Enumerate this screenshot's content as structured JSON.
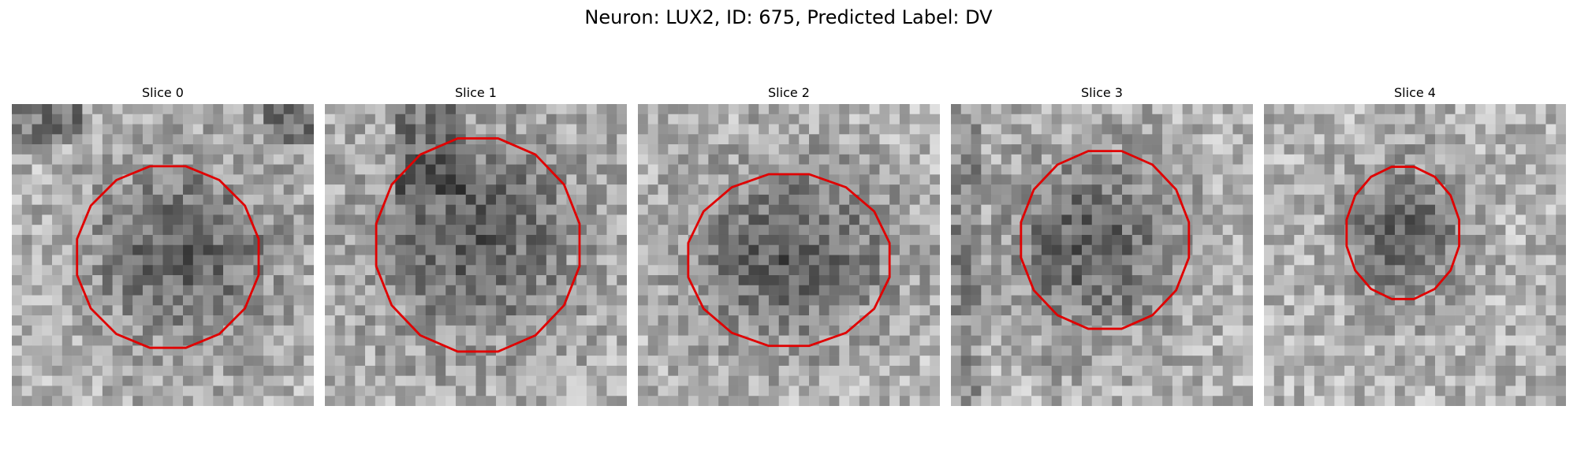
{
  "figure": {
    "title": "Neuron: LUX2, ID: 675, Predicted Label: DV"
  },
  "panels": [
    {
      "title": "Slice 0",
      "seed": 11,
      "contour_color": "#e00000"
    },
    {
      "title": "Slice 1",
      "seed": 23,
      "contour_color": "#e00000"
    },
    {
      "title": "Slice 2",
      "seed": 37,
      "contour_color": "#e00000"
    },
    {
      "title": "Slice 3",
      "seed": 41,
      "contour_color": "#e00000"
    },
    {
      "title": "Slice 4",
      "seed": 59,
      "contour_color": "#e00000"
    }
  ],
  "colors": {
    "contour": "#e00000",
    "background": "#ffffff"
  }
}
